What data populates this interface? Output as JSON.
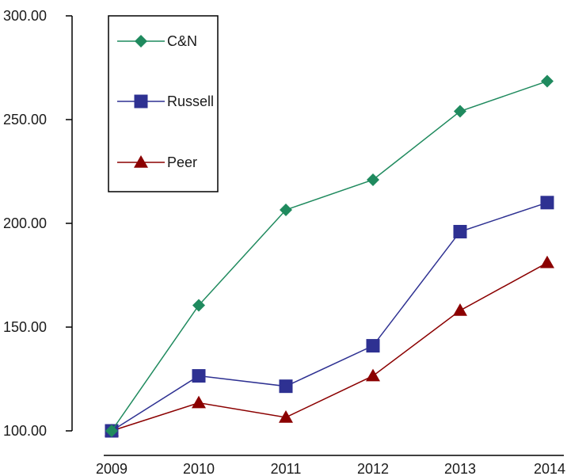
{
  "chart_data": {
    "type": "line",
    "title": "",
    "xlabel": "",
    "ylabel": "",
    "categories": [
      "2009",
      "2010",
      "2011",
      "2012",
      "2013",
      "2014"
    ],
    "ylim": [
      100,
      300
    ],
    "yticks": [
      "100.00",
      "150.00",
      "200.00",
      "250.00",
      "300.00"
    ],
    "grid": false,
    "legend_position": "top-left",
    "series": [
      {
        "name": "C&N",
        "marker": "diamond",
        "color": "#1f8a5e",
        "values": [
          100,
          160.5,
          206.5,
          221,
          254,
          268.5
        ]
      },
      {
        "name": "Russell",
        "marker": "square",
        "color": "#2e3192",
        "values": [
          100,
          126.5,
          121.5,
          141,
          196,
          210
        ]
      },
      {
        "name": "Peer",
        "marker": "triangle",
        "color": "#8b0000",
        "values": [
          100,
          113.5,
          106.5,
          126.5,
          158,
          181
        ]
      }
    ]
  }
}
